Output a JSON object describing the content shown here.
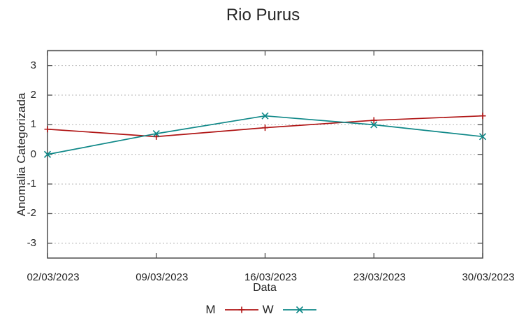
{
  "chart_data": {
    "type": "line",
    "title": "Rio Purus",
    "x": [
      "02/03/2023",
      "09/03/2023",
      "16/03/2023",
      "23/03/2023",
      "30/03/2023"
    ],
    "series": [
      {
        "name": "M",
        "color": "#b01515",
        "marker": "plus",
        "values": [
          0.85,
          0.6,
          0.9,
          1.15,
          1.3
        ]
      },
      {
        "name": "W",
        "color": "#0f8888",
        "marker": "cross",
        "values": [
          0,
          0.7,
          1.3,
          1.0,
          0.6
        ]
      }
    ],
    "xlabel": "Data",
    "ylabel": "Anomalia Categorizada",
    "yticks": [
      3,
      2,
      1,
      0,
      -1,
      -2,
      -3
    ],
    "ylim": [
      -3.5,
      3.5
    ],
    "grid": true,
    "grid_style": "dotted",
    "legend_position": "bottom-center",
    "grid_color": "#b5b5b5",
    "border_color": "#4d4d4d",
    "text_color": "#262626"
  }
}
